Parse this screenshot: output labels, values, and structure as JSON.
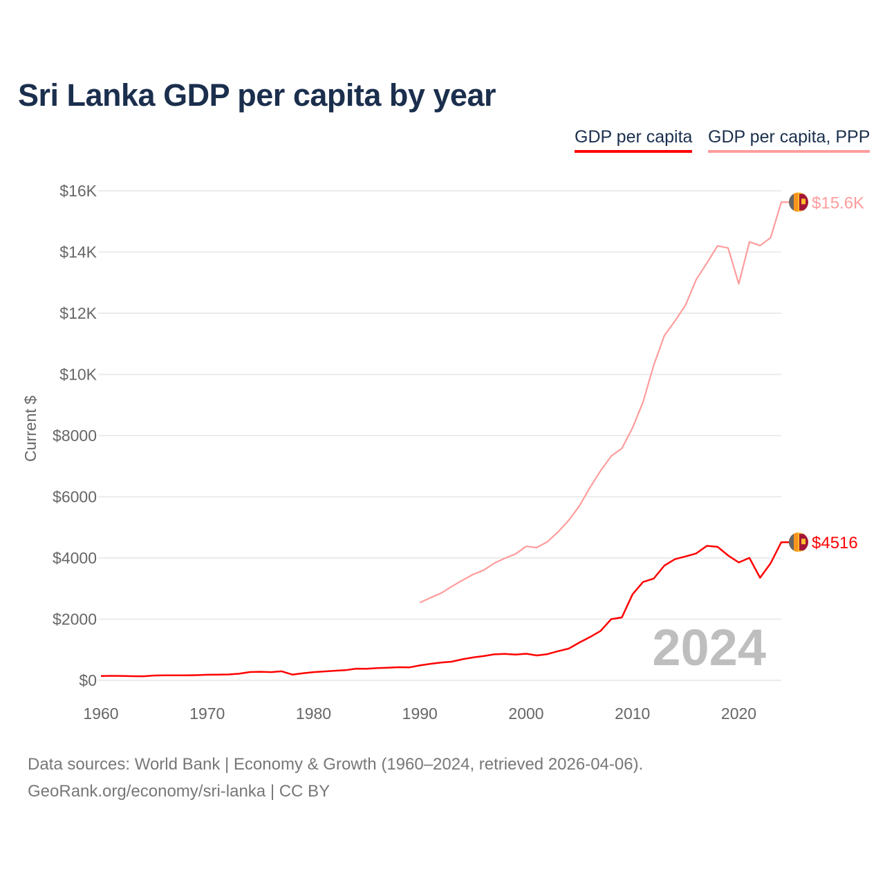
{
  "chart_data": {
    "type": "line",
    "title": "Sri Lanka GDP per capita by year",
    "ylabel": "Current $",
    "xlabel": "",
    "xlim": [
      1960,
      2024
    ],
    "ylim": [
      0,
      16000
    ],
    "grid": true,
    "legend_placement": "top-right",
    "x_ticks": [
      1960,
      1970,
      1980,
      1990,
      2000,
      2010,
      2020
    ],
    "x_tick_labels": [
      "1960",
      "1970",
      "1980",
      "1990",
      "2000",
      "2010",
      "2020"
    ],
    "y_ticks": [
      0,
      2000,
      4000,
      6000,
      8000,
      10000,
      12000,
      14000,
      16000
    ],
    "y_tick_labels": [
      "$0",
      "$2000",
      "$4000",
      "$6000",
      "$8000",
      "$10K",
      "$12K",
      "$14K",
      "$16K"
    ],
    "year_watermark": "2024",
    "series": [
      {
        "name": "GDP per capita",
        "color": "#ff0000",
        "end_label": "$4516",
        "x_start": 1960,
        "values": [
          143,
          146,
          144,
          135,
          134,
          159,
          162,
          166,
          163,
          169,
          183,
          187,
          192,
          218,
          271,
          281,
          270,
          297,
          187,
          232,
          268,
          291,
          314,
          333,
          381,
          379,
          399,
          414,
          430,
          423,
          489,
          541,
          581,
          610,
          690,
          749,
          794,
          849,
          866,
          843,
          869,
          813,
          856,
          953,
          1038,
          1233,
          1414,
          1614,
          2000,
          2057,
          2808,
          3215,
          3326,
          3752,
          3962,
          4050,
          4150,
          4396,
          4363,
          4082,
          3852,
          4002,
          3354,
          3828,
          4516
        ]
      },
      {
        "name": "GDP per capita, PPP",
        "color": "#ff9c9c",
        "end_label": "$15.6K",
        "x_start": 1990,
        "values": [
          2540,
          2700,
          2850,
          3070,
          3270,
          3460,
          3600,
          3830,
          3990,
          4130,
          4380,
          4340,
          4530,
          4850,
          5230,
          5700,
          6300,
          6850,
          7330,
          7580,
          8250,
          9100,
          10300,
          11270,
          11750,
          12270,
          13100,
          13640,
          14200,
          14130,
          12960,
          14330,
          14210,
          14470,
          15630
        ]
      }
    ]
  },
  "footer": {
    "line1": "Data sources: World Bank | Economy & Growth (1960–2024, retrieved 2026-04-06).",
    "line2": "GeoRank.org/economy/sri-lanka | CC BY"
  }
}
